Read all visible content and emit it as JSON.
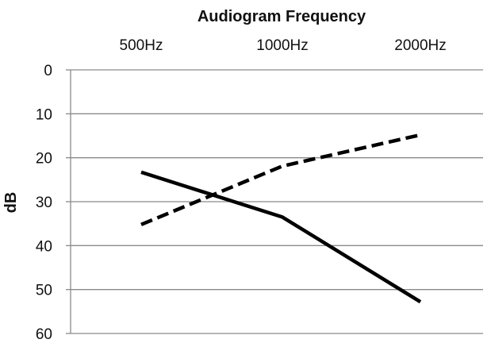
{
  "chart_data": {
    "type": "line",
    "title": "Audiogram Frequency",
    "xlabel": "",
    "ylabel": "dB",
    "categories": [
      "500Hz",
      "1000Hz",
      "2000Hz"
    ],
    "x_axis_position": "top",
    "y_axis_inverted": true,
    "ylim": [
      0,
      60
    ],
    "y_ticks": [
      0,
      10,
      20,
      30,
      40,
      50,
      60
    ],
    "y_tick_labels": [
      "0",
      "10",
      "20",
      "30",
      "40",
      "50",
      "60"
    ],
    "grid": true,
    "legend": "none",
    "series": [
      {
        "values": [
          23.3,
          33.5,
          52.8
        ],
        "style": "solid",
        "color": "#000000"
      },
      {
        "values": [
          35.2,
          21.9,
          14.8
        ],
        "style": "dashed",
        "color": "#000000"
      }
    ]
  }
}
